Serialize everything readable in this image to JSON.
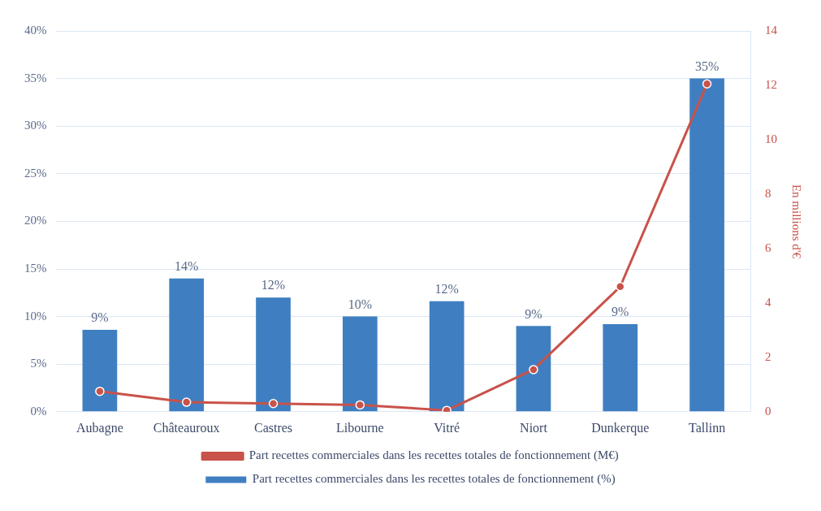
{
  "chart_data": {
    "type": "bar",
    "categories": [
      "Aubagne",
      "Châteauroux",
      "Castres",
      "Libourne",
      "Vitré",
      "Niort",
      "Dunkerque",
      "Tallinn"
    ],
    "series": [
      {
        "name": "Part recettes commerciales dans les recettes totales de fonctionnement (%)",
        "color": "#3f7fc1",
        "values": [
          8.6,
          14,
          12,
          10,
          11.6,
          9,
          9.2,
          35
        ],
        "value_labels": [
          "9%",
          "14%",
          "12%",
          "10%",
          "12%",
          "9%",
          "9%",
          "35%"
        ]
      },
      {
        "name": "Part recettes commerciales dans les recettes totales de fonctionnement (M€)",
        "type": "line",
        "axis": "y2",
        "color": "#c9524a",
        "marker": "circle",
        "values": [
          0.75,
          0.35,
          0.3,
          0.25,
          0.05,
          1.55,
          4.6,
          12.05
        ]
      }
    ],
    "ylim": [
      0,
      40
    ],
    "yticks": [
      {
        "value": 0,
        "label": "0%"
      },
      {
        "value": 5,
        "label": "5%"
      },
      {
        "value": 10,
        "label": "10%"
      },
      {
        "value": 15,
        "label": "15%"
      },
      {
        "value": 20,
        "label": "20%"
      },
      {
        "value": 25,
        "label": "25%"
      },
      {
        "value": 30,
        "label": "30%"
      },
      {
        "value": 35,
        "label": "35%"
      },
      {
        "value": 40,
        "label": "40%"
      }
    ],
    "y2lim": [
      0,
      14
    ],
    "y2ticks": [
      0,
      2,
      4,
      6,
      8,
      10,
      12,
      14
    ],
    "y2label": "En millions d'€",
    "grid": "y",
    "legend": "bottom"
  }
}
